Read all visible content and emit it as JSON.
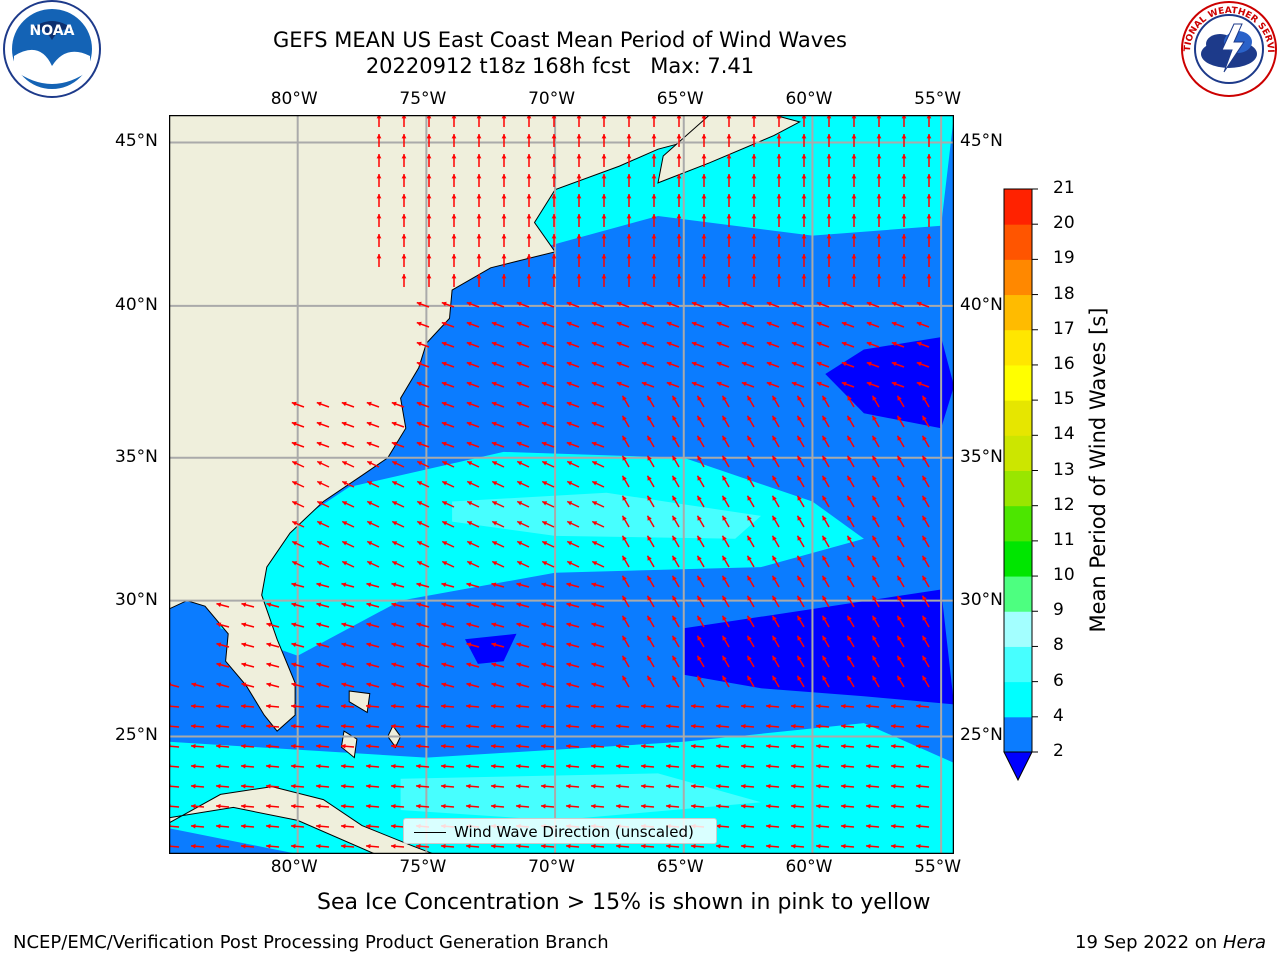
{
  "header": {
    "title_line1": "GEFS MEAN US East Coast Mean Period of Wind Waves",
    "title_line2": "20220912 t18z 168h fcst   Max: 7.41"
  },
  "logos": {
    "left_logo_text": "NOAA",
    "right_logo_text": "NATIONAL WEATHER SERVICE"
  },
  "map": {
    "lon_ticks_top": [
      "80°W",
      "75°W",
      "70°W",
      "65°W",
      "60°W",
      "55°W"
    ],
    "lon_ticks_bottom": [
      "80°W",
      "75°W",
      "70°W",
      "65°W",
      "60°W",
      "55°W"
    ],
    "lat_ticks_left": [
      "45°N",
      "40°N",
      "35°N",
      "30°N",
      "25°N"
    ],
    "lat_ticks_right": [
      "45°N",
      "40°N",
      "35°N",
      "30°N",
      "25°N"
    ],
    "lon_range": [
      -85,
      -54.5
    ],
    "lat_range": [
      20.5,
      45.8
    ],
    "legend_label": "Wind Wave Direction (unscaled)",
    "colors": {
      "land": "#efefdc",
      "ocean_low": "#0000ff",
      "ocean_2_4": "#0b7cff",
      "ocean_4_6": "#00ffff",
      "ocean_6_8": "#47ffff",
      "arrow": "#ff0000",
      "grid": "#aaaaaa"
    }
  },
  "colorbar": {
    "label": "Mean Period of Wind Waves [s]",
    "ticks": [
      "2",
      "4",
      "6",
      "8",
      "9",
      "10",
      "11",
      "12",
      "13",
      "14",
      "15",
      "16",
      "17",
      "18",
      "19",
      "20",
      "21"
    ],
    "colors": [
      "#0b7cff",
      "#00ffff",
      "#47ffff",
      "#a3ffff",
      "#4dff80",
      "#00e600",
      "#4ce600",
      "#99e600",
      "#cce600",
      "#e6e600",
      "#ffff00",
      "#ffe600",
      "#ffbb00",
      "#ff8800",
      "#ff5500",
      "#ff2200"
    ],
    "under_color": "#0000ff"
  },
  "footer": {
    "sea_ice_note": "Sea Ice Concentration > 15% is shown in pink to yellow",
    "left_credit": "NCEP/EMC/Verification Post Processing Product Generation Branch",
    "right_credit_date": "19 Sep 2022 on ",
    "right_credit_host": "Hera"
  }
}
